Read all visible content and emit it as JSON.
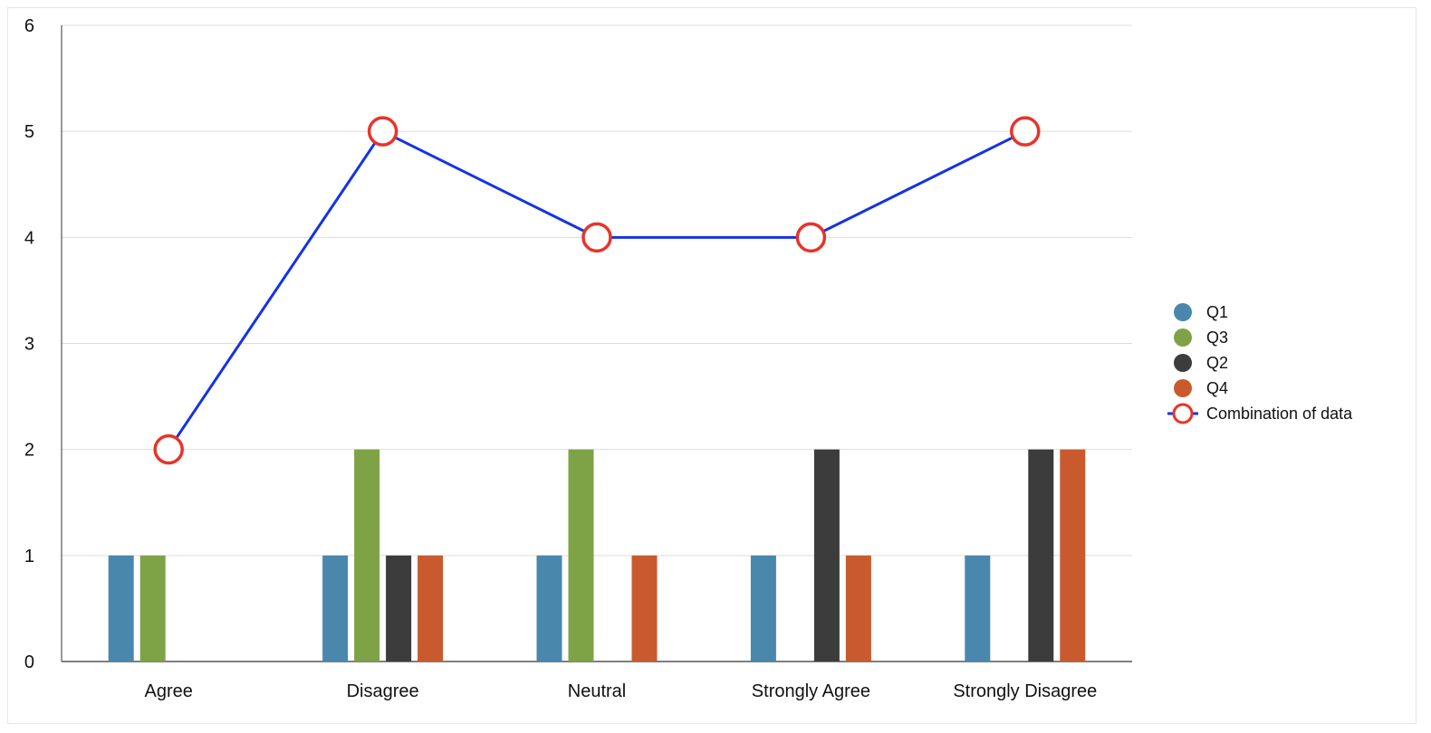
{
  "chart_data": {
    "type": "bar",
    "title": "",
    "xlabel": "",
    "ylabel": "",
    "categories": [
      "Agree",
      "Disagree",
      "Neutral",
      "Strongly Agree",
      "Strongly Disagree"
    ],
    "ylim": [
      0,
      6
    ],
    "yticks": [
      0,
      1,
      2,
      3,
      4,
      5,
      6
    ],
    "grid": true,
    "legend_position": "right",
    "series": [
      {
        "name": "Q1",
        "type": "bar",
        "color": "#4a87ad",
        "values": [
          1,
          1,
          1,
          1,
          1
        ]
      },
      {
        "name": "Q3",
        "type": "bar",
        "color": "#7ea346",
        "values": [
          1,
          2,
          2,
          0,
          0
        ]
      },
      {
        "name": "Q2",
        "type": "bar",
        "color": "#3d3c3c",
        "values": [
          0,
          1,
          0,
          2,
          2
        ]
      },
      {
        "name": "Q4",
        "type": "bar",
        "color": "#c95a2e",
        "values": [
          0,
          1,
          1,
          1,
          2
        ]
      },
      {
        "name": "Combination of data",
        "type": "line",
        "color": "#1432e8",
        "marker_color": "#e8332a",
        "values": [
          2,
          5,
          4,
          4,
          5
        ]
      }
    ]
  }
}
